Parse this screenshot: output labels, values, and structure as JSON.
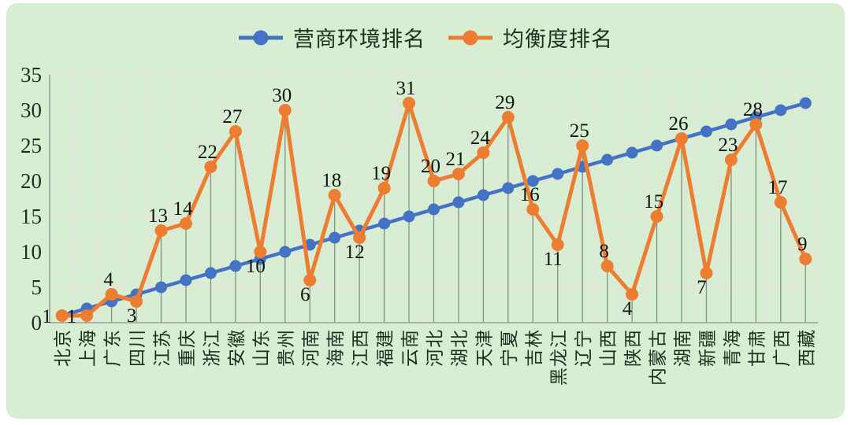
{
  "chart_data": {
    "type": "line",
    "title": "",
    "xlabel": "",
    "ylabel": "",
    "ylim": [
      0,
      35
    ],
    "y_ticks": [
      0,
      5,
      10,
      15,
      20,
      25,
      30,
      35
    ],
    "grid": true,
    "legend_position": "top",
    "categories": [
      "北京",
      "上海",
      "广东",
      "四川",
      "江苏",
      "重庆",
      "浙江",
      "安徽",
      "山东",
      "贵州",
      "河南",
      "海南",
      "江西",
      "福建",
      "云南",
      "河北",
      "湖北",
      "天津",
      "宁夏",
      "吉林",
      "黑龙江",
      "辽宁",
      "山西",
      "陕西",
      "内蒙古",
      "湖南",
      "新疆",
      "青海",
      "甘肃",
      "广西",
      "西藏"
    ],
    "series": [
      {
        "name": "营商环境排名",
        "color": "#4472c4",
        "marker": "circle",
        "data_labels": false,
        "drop_lines": false,
        "values": [
          1,
          2,
          3,
          4,
          5,
          6,
          7,
          8,
          9,
          10,
          11,
          12,
          13,
          14,
          15,
          16,
          17,
          18,
          19,
          20,
          21,
          22,
          23,
          24,
          25,
          26,
          27,
          28,
          29,
          30,
          31
        ]
      },
      {
        "name": "均衡度排名",
        "color": "#ed7d31",
        "marker": "circle",
        "data_labels": true,
        "drop_lines": true,
        "values": [
          1,
          1,
          4,
          3,
          13,
          14,
          22,
          27,
          10,
          30,
          6,
          18,
          12,
          19,
          31,
          20,
          21,
          24,
          29,
          16,
          11,
          25,
          8,
          4,
          15,
          26,
          7,
          23,
          28,
          17,
          9
        ],
        "label_positions": {
          "0": "left",
          "1": "left",
          "3": "below",
          "8": "below",
          "10": "below",
          "12": "below",
          "20": "below",
          "23": "below",
          "26": "below"
        }
      }
    ],
    "colors": {
      "background": "#d7eed3",
      "grid": "#e9dde2",
      "axis": "#9aa29a",
      "drop_line": "#868e86",
      "data_label": "#101510",
      "tick_text": "#1e2f22"
    }
  },
  "legend": {
    "items": [
      {
        "label": "营商环境排名"
      },
      {
        "label": "均衡度排名"
      }
    ]
  }
}
